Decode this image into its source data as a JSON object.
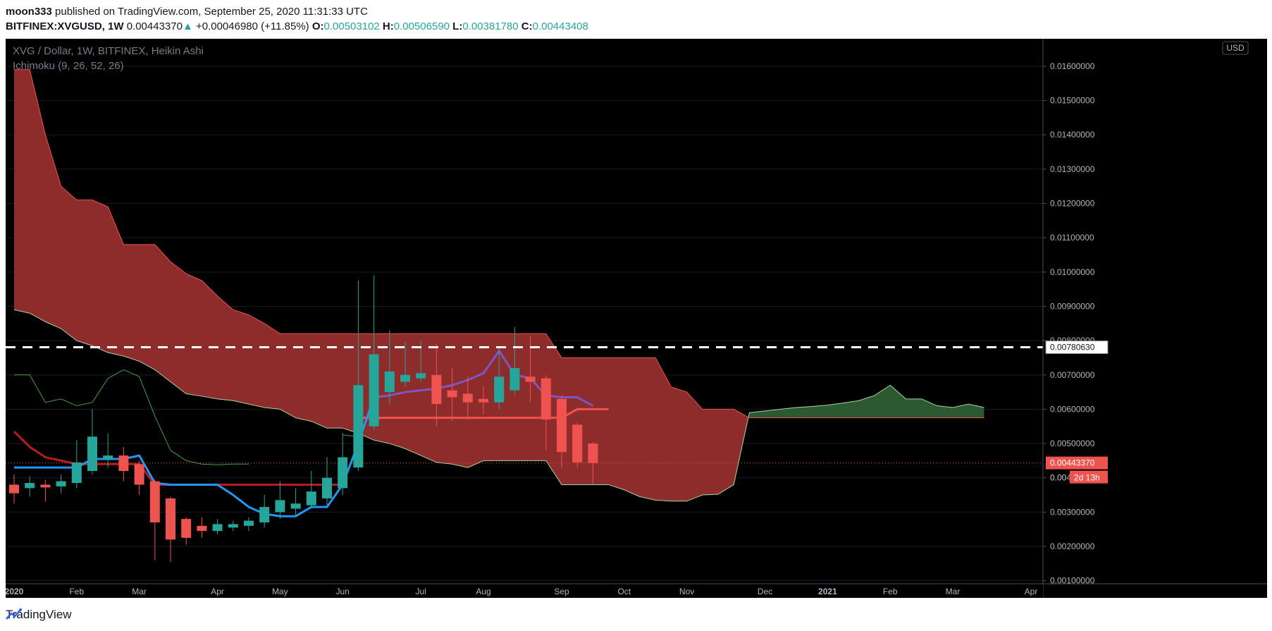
{
  "header": {
    "author": "moon333",
    "published_text": "published on TradingView.com, September 25, 2020 11:31:33 UTC",
    "symbol": "BITFINEX:XVGUSD, 1W",
    "last": "0.00443370",
    "change": "+0.00046980 (+11.85%)",
    "o_label": "O:",
    "o_val": "0.00503102",
    "h_label": "H:",
    "h_val": "0.00506590",
    "l_label": "L:",
    "l_val": "0.00381780",
    "c_label": "C:",
    "c_val": "0.00443408"
  },
  "legend": {
    "title": "XVG / Dollar, 1W, BITFINEX, Heikin Ashi",
    "indicator": "Ichimoku (9, 26, 52, 26)"
  },
  "currency_badge": "USD",
  "footer": {
    "brand": "TradingView"
  },
  "colors": {
    "up": "#26a69a",
    "down": "#ef5350",
    "cloud_red": "#962d2d",
    "cloud_green": "#2e5e33",
    "tenkan": "#2196f3",
    "kijun": "#b71c1c",
    "chikou": "#43a047",
    "spanA": "#a5d6a7",
    "spanB": "#ef5350"
  },
  "chart_data": {
    "type": "candlestick",
    "style": "Heikin Ashi",
    "ylim": [
      0.0005,
      0.0168
    ],
    "y_ticks": [
      "0.01600000",
      "0.01500000",
      "0.01400000",
      "0.01300000",
      "0.01200000",
      "0.01100000",
      "0.01000000",
      "0.00900000",
      "0.00800000",
      "0.00700000",
      "0.00600000",
      "0.00500000",
      "0.00400000",
      "0.00300000",
      "0.00200000",
      "0.00100000"
    ],
    "y_tick_values": [
      0.016,
      0.015,
      0.014,
      0.013,
      0.012,
      0.011,
      0.01,
      0.009,
      0.008,
      0.007,
      0.006,
      0.005,
      0.004,
      0.003,
      0.002,
      0.001
    ],
    "x_labels": [
      {
        "w": 0,
        "text": "2020",
        "bold": true
      },
      {
        "w": 4,
        "text": "Feb",
        "bold": false
      },
      {
        "w": 8,
        "text": "Mar",
        "bold": false
      },
      {
        "w": 13,
        "text": "Apr",
        "bold": false
      },
      {
        "w": 17,
        "text": "May",
        "bold": false
      },
      {
        "w": 21,
        "text": "Jun",
        "bold": false
      },
      {
        "w": 26,
        "text": "Jul",
        "bold": false
      },
      {
        "w": 30,
        "text": "Aug",
        "bold": false
      },
      {
        "w": 35,
        "text": "Sep",
        "bold": false
      },
      {
        "w": 39,
        "text": "Oct",
        "bold": false
      },
      {
        "w": 43,
        "text": "Nov",
        "bold": false
      },
      {
        "w": 48,
        "text": "Dec",
        "bold": false
      },
      {
        "w": 52,
        "text": "2021",
        "bold": true
      },
      {
        "w": 56,
        "text": "Feb",
        "bold": false
      },
      {
        "w": 60,
        "text": "Mar",
        "bold": false
      },
      {
        "w": 65,
        "text": "Apr",
        "bold": false
      }
    ],
    "candles": [
      {
        "o": 0.0038,
        "h": 0.0041,
        "l": 0.00325,
        "c": 0.00355
      },
      {
        "o": 0.0037,
        "h": 0.00405,
        "l": 0.00345,
        "c": 0.00385
      },
      {
        "o": 0.0038,
        "h": 0.00395,
        "l": 0.0033,
        "c": 0.00372
      },
      {
        "o": 0.00375,
        "h": 0.0041,
        "l": 0.00355,
        "c": 0.0039
      },
      {
        "o": 0.00385,
        "h": 0.0051,
        "l": 0.0037,
        "c": 0.00445
      },
      {
        "o": 0.0042,
        "h": 0.006,
        "l": 0.0041,
        "c": 0.0052
      },
      {
        "o": 0.00455,
        "h": 0.0053,
        "l": 0.0043,
        "c": 0.00465
      },
      {
        "o": 0.00465,
        "h": 0.0049,
        "l": 0.0039,
        "c": 0.0042
      },
      {
        "o": 0.0044,
        "h": 0.0045,
        "l": 0.0035,
        "c": 0.0038
      },
      {
        "o": 0.0039,
        "h": 0.00395,
        "l": 0.0016,
        "c": 0.0027
      },
      {
        "o": 0.0034,
        "h": 0.00345,
        "l": 0.00155,
        "c": 0.0022
      },
      {
        "o": 0.0028,
        "h": 0.00285,
        "l": 0.00205,
        "c": 0.00225
      },
      {
        "o": 0.0026,
        "h": 0.00285,
        "l": 0.00225,
        "c": 0.00245
      },
      {
        "o": 0.00245,
        "h": 0.0028,
        "l": 0.00235,
        "c": 0.00265
      },
      {
        "o": 0.00255,
        "h": 0.00275,
        "l": 0.00245,
        "c": 0.00265
      },
      {
        "o": 0.0026,
        "h": 0.00285,
        "l": 0.00245,
        "c": 0.00275
      },
      {
        "o": 0.0027,
        "h": 0.0035,
        "l": 0.00255,
        "c": 0.00315
      },
      {
        "o": 0.003,
        "h": 0.0039,
        "l": 0.0028,
        "c": 0.00335
      },
      {
        "o": 0.0031,
        "h": 0.0037,
        "l": 0.0029,
        "c": 0.00325
      },
      {
        "o": 0.0032,
        "h": 0.0042,
        "l": 0.0031,
        "c": 0.0036
      },
      {
        "o": 0.0034,
        "h": 0.0046,
        "l": 0.0032,
        "c": 0.004
      },
      {
        "o": 0.0037,
        "h": 0.0053,
        "l": 0.0035,
        "c": 0.0046
      },
      {
        "o": 0.0043,
        "h": 0.00975,
        "l": 0.0042,
        "c": 0.0067
      },
      {
        "o": 0.0055,
        "h": 0.0099,
        "l": 0.0054,
        "c": 0.0076
      },
      {
        "o": 0.0065,
        "h": 0.0083,
        "l": 0.00615,
        "c": 0.0071
      },
      {
        "o": 0.0068,
        "h": 0.00795,
        "l": 0.00665,
        "c": 0.007
      },
      {
        "o": 0.0069,
        "h": 0.008,
        "l": 0.0068,
        "c": 0.00705
      },
      {
        "o": 0.007,
        "h": 0.0079,
        "l": 0.0055,
        "c": 0.00615
      },
      {
        "o": 0.00655,
        "h": 0.0072,
        "l": 0.00565,
        "c": 0.00635
      },
      {
        "o": 0.00645,
        "h": 0.00695,
        "l": 0.0057,
        "c": 0.0062
      },
      {
        "o": 0.0063,
        "h": 0.00665,
        "l": 0.00585,
        "c": 0.0062
      },
      {
        "o": 0.0062,
        "h": 0.0078,
        "l": 0.006,
        "c": 0.00695
      },
      {
        "o": 0.00655,
        "h": 0.0084,
        "l": 0.0064,
        "c": 0.0072
      },
      {
        "o": 0.00695,
        "h": 0.00815,
        "l": 0.0062,
        "c": 0.0068
      },
      {
        "o": 0.0069,
        "h": 0.007,
        "l": 0.0048,
        "c": 0.0057
      },
      {
        "o": 0.0063,
        "h": 0.0064,
        "l": 0.0043,
        "c": 0.00475
      },
      {
        "o": 0.00555,
        "h": 0.0056,
        "l": 0.0043,
        "c": 0.00445
      },
      {
        "o": 0.005,
        "h": 0.00505,
        "l": 0.00382,
        "c": 0.00443
      }
    ],
    "spanA": [
      0.0089,
      0.0088,
      0.00855,
      0.00835,
      0.008,
      0.00785,
      0.00765,
      0.00755,
      0.0074,
      0.00715,
      0.0068,
      0.00645,
      0.00638,
      0.0063,
      0.00625,
      0.00615,
      0.00605,
      0.006,
      0.00575,
      0.00565,
      0.00545,
      0.00545,
      0.0053,
      0.0051,
      0.005,
      0.00485,
      0.00465,
      0.00445,
      0.0044,
      0.0043,
      0.0045,
      0.0045,
      0.0045,
      0.0045,
      0.0045,
      0.0038,
      0.0038,
      0.0038,
      0.0038,
      0.00365,
      0.00345,
      0.00335,
      0.00332,
      0.00332,
      0.0035,
      0.00352,
      0.0038,
      0.0059,
      0.00595,
      0.006,
      0.00605,
      0.00608,
      0.00612,
      0.00618,
      0.00625,
      0.0064,
      0.0067,
      0.0063,
      0.0063,
      0.0061,
      0.00605,
      0.00615,
      0.00605
    ],
    "spanB": [
      0.0159,
      0.0159,
      0.014,
      0.0125,
      0.0121,
      0.0121,
      0.0119,
      0.0108,
      0.0108,
      0.0108,
      0.0103,
      0.00995,
      0.00975,
      0.0093,
      0.0089,
      0.00875,
      0.0085,
      0.0082,
      0.0082,
      0.0082,
      0.0082,
      0.0082,
      0.0082,
      0.0082,
      0.0082,
      0.0082,
      0.0082,
      0.0082,
      0.0082,
      0.0082,
      0.0082,
      0.0082,
      0.0082,
      0.0082,
      0.0082,
      0.0075,
      0.0075,
      0.0075,
      0.0075,
      0.0075,
      0.0075,
      0.0075,
      0.00665,
      0.0065,
      0.006,
      0.006,
      0.006,
      0.00575,
      0.00575,
      0.00575,
      0.00575,
      0.00575,
      0.00575,
      0.00575,
      0.00575,
      0.00575,
      0.00575,
      0.00575,
      0.00575,
      0.00575,
      0.00575,
      0.00575,
      0.00575
    ],
    "tenkan": [
      0.0043,
      0.0043,
      0.0043,
      0.0043,
      0.0043,
      0.00455,
      0.00455,
      0.00455,
      0.00465,
      0.00385,
      0.0038,
      0.0038,
      0.0038,
      0.0038,
      0.0035,
      0.00315,
      0.00295,
      0.00288,
      0.00288,
      0.00315,
      0.00315,
      0.0038,
      0.005,
      0.00635
    ],
    "tenkan_x0": 0,
    "tenkan2": [
      0.00635,
      0.0064,
      0.0065,
      0.00655,
      0.0066,
      0.0067,
      0.00685,
      0.00705,
      0.0077,
      0.007,
      0.0069,
      0.0064,
      0.00635,
      0.00635,
      0.0061
    ],
    "tenkan2_x0": 23,
    "kijun": [
      0.00535,
      0.0049,
      0.0046,
      0.0045,
      0.0044,
      0.0044,
      0.0044,
      0.0044,
      0.0044,
      0.0038,
      0.0038,
      0.0038,
      0.0038,
      0.0038,
      0.0038,
      0.0038,
      0.0038,
      0.0038,
      0.0038,
      0.0038,
      0.0038,
      0.0038
    ],
    "kijun_x0": 0,
    "kijun2": [
      0.00575,
      0.00575,
      0.00575,
      0.00575,
      0.00575,
      0.00575,
      0.00575,
      0.00575,
      0.00575,
      0.00575,
      0.00575,
      0.00575,
      0.00575,
      0.00575,
      0.006,
      0.006,
      0.006
    ],
    "kijun2_x0": 22,
    "chikou": [
      0.007,
      0.007,
      0.0062,
      0.0063,
      0.0061,
      0.0062,
      0.0069,
      0.00715,
      0.00695,
      0.0058,
      0.0048,
      0.0045,
      0.0044,
      0.00438,
      0.0044,
      0.0044
    ],
    "chikou_x0": 0,
    "chikou2_x0": 21,
    "chikou2": [
      0.00525,
      0.0052
    ],
    "dashed_line": 0.0078063,
    "price_label": "0.00780630",
    "last_price": 0.0044337,
    "last_price_label": "0.00443370",
    "countdown": "2d 13h",
    "partial_label": "0.00"
  }
}
